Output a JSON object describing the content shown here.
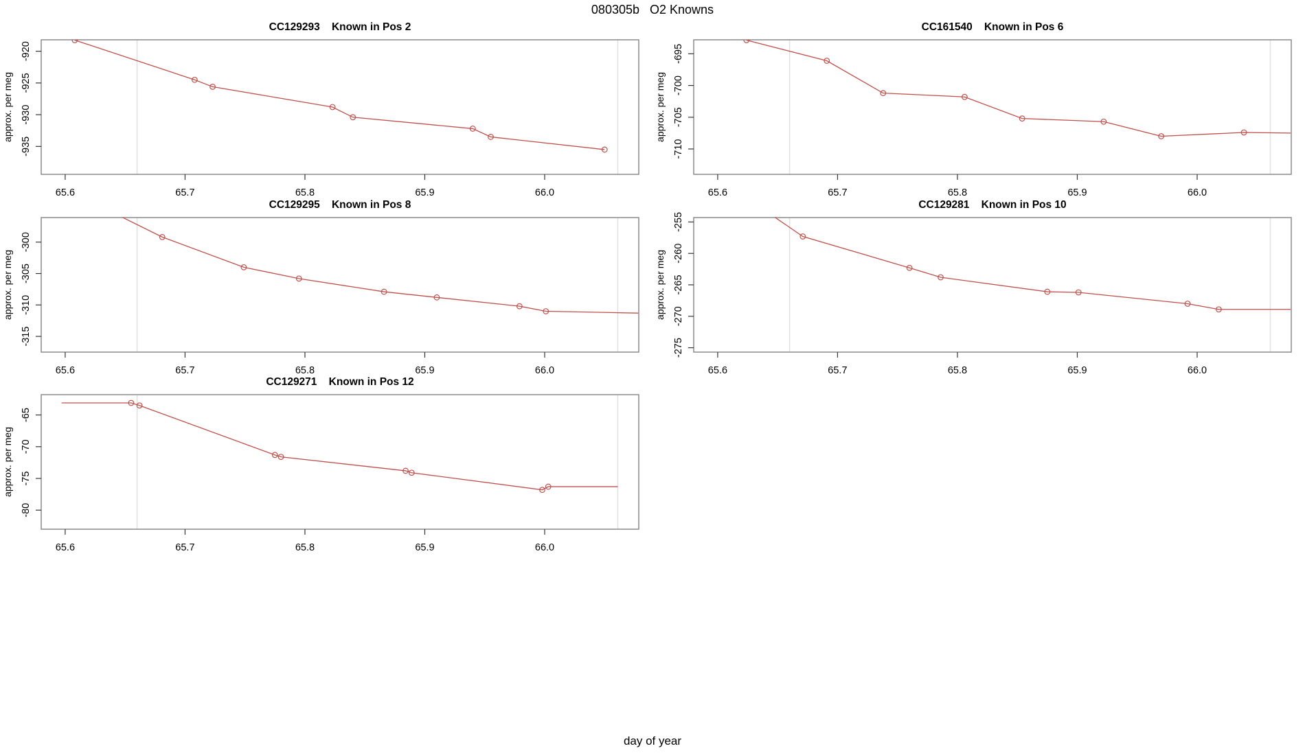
{
  "figure": {
    "title": "080305b   O2 Knowns",
    "xlabel": "day of year",
    "background": "#ffffff"
  },
  "chart_config": {
    "xlim": [
      65.58,
      66.0785
    ],
    "xticks": [
      65.6,
      65.7,
      65.8,
      65.9,
      66.0
    ],
    "xtick_labels": [
      "65.6",
      "65.7",
      "65.8",
      "65.9",
      "66.0"
    ],
    "vlines": [
      65.66,
      66.061
    ],
    "line_color": "#bf4f4a",
    "marker": "open-circle",
    "marker_radius": 3.8,
    "vline_color": "#e2e2e2",
    "box_color": "#8a8a8a",
    "tick_color": "#333333",
    "text_color": "#000000",
    "grid": false,
    "legend": "none"
  },
  "chart_data": [
    {
      "type": "line",
      "id": "CC129293",
      "title": "CC129293    Known in Pos 2",
      "row": 0,
      "col": 0,
      "ylabel": "approx. per meg",
      "ylim": [
        -939.4,
        -918.2
      ],
      "yticks": [
        -935,
        -930,
        -925,
        -920
      ],
      "ytick_labels": [
        "-935",
        "-930",
        "-925",
        "-920"
      ],
      "line": [
        [
          65.608,
          -918.25
        ],
        [
          65.708,
          -924.5
        ],
        [
          65.723,
          -925.6
        ],
        [
          65.823,
          -928.8
        ],
        [
          65.84,
          -930.4
        ],
        [
          65.94,
          -932.2
        ],
        [
          65.955,
          -933.5
        ],
        [
          66.05,
          -935.5
        ]
      ],
      "points": [
        [
          65.608,
          -918.25
        ],
        [
          65.708,
          -924.5
        ],
        [
          65.723,
          -925.6
        ],
        [
          65.823,
          -928.8
        ],
        [
          65.84,
          -930.4
        ],
        [
          65.94,
          -932.2
        ],
        [
          65.955,
          -933.5
        ],
        [
          66.05,
          -935.5
        ]
      ]
    },
    {
      "type": "line",
      "id": "CC161540",
      "title": "CC161540    Known in Pos 6",
      "row": 0,
      "col": 1,
      "ylabel": "approx. per meg",
      "ylim": [
        -714.0,
        -692.8
      ],
      "yticks": [
        -710,
        -705,
        -700,
        -695
      ],
      "ytick_labels": [
        "-710",
        "-705",
        "-700",
        "-695"
      ],
      "line": [
        [
          65.624,
          -692.85
        ],
        [
          65.691,
          -696.1
        ],
        [
          65.738,
          -701.2
        ],
        [
          65.806,
          -701.8
        ],
        [
          65.854,
          -705.2
        ],
        [
          65.922,
          -705.7
        ],
        [
          65.97,
          -708.0
        ],
        [
          66.039,
          -707.4
        ],
        [
          66.078,
          -707.5
        ]
      ],
      "points": [
        [
          65.624,
          -692.85
        ],
        [
          65.691,
          -696.1
        ],
        [
          65.738,
          -701.2
        ],
        [
          65.806,
          -701.8
        ],
        [
          65.854,
          -705.2
        ],
        [
          65.922,
          -705.7
        ],
        [
          65.97,
          -708.0
        ],
        [
          66.039,
          -707.4
        ]
      ]
    },
    {
      "type": "line",
      "id": "CC129295",
      "title": "CC129295    Known in Pos 8",
      "row": 1,
      "col": 0,
      "ylabel": "approx. per meg",
      "ylim": [
        -317.5,
        -296.1
      ],
      "yticks": [
        -315,
        -310,
        -305,
        -300
      ],
      "ytick_labels": [
        "-315",
        "-310",
        "-305",
        "-300"
      ],
      "line": [
        [
          65.645,
          -295.8
        ],
        [
          65.681,
          -299.2
        ],
        [
          65.749,
          -304.0
        ],
        [
          65.795,
          -305.8
        ],
        [
          65.866,
          -307.9
        ],
        [
          65.91,
          -308.8
        ],
        [
          65.979,
          -310.2
        ],
        [
          66.001,
          -311.0
        ],
        [
          66.078,
          -311.3
        ]
      ],
      "points": [
        [
          65.681,
          -299.2
        ],
        [
          65.749,
          -304.0
        ],
        [
          65.795,
          -305.8
        ],
        [
          65.866,
          -307.9
        ],
        [
          65.91,
          -308.8
        ],
        [
          65.979,
          -310.2
        ],
        [
          66.001,
          -311.0
        ]
      ]
    },
    {
      "type": "line",
      "id": "CC129281",
      "title": "CC129281    Known in Pos 10",
      "row": 1,
      "col": 1,
      "ylabel": "approx. per meg",
      "ylim": [
        -275.7,
        -254.3
      ],
      "yticks": [
        -275,
        -270,
        -265,
        -260,
        -255
      ],
      "ytick_labels": [
        "-275",
        "-270",
        "-265",
        "-260",
        "-255"
      ],
      "line": [
        [
          65.645,
          -253.9
        ],
        [
          65.671,
          -257.3
        ],
        [
          65.76,
          -262.3
        ],
        [
          65.786,
          -263.8
        ],
        [
          65.875,
          -266.1
        ],
        [
          65.901,
          -266.2
        ],
        [
          65.992,
          -268.0
        ],
        [
          66.018,
          -268.9
        ],
        [
          66.078,
          -268.9
        ]
      ],
      "points": [
        [
          65.671,
          -257.3
        ],
        [
          65.76,
          -262.3
        ],
        [
          65.786,
          -263.8
        ],
        [
          65.875,
          -266.1
        ],
        [
          65.901,
          -266.2
        ],
        [
          65.992,
          -268.0
        ],
        [
          66.018,
          -268.9
        ]
      ]
    },
    {
      "type": "line",
      "id": "CC129271",
      "title": "CC129271    Known in Pos 12",
      "row": 2,
      "col": 0,
      "ylabel": "approx. per meg",
      "ylim": [
        -83.0,
        -61.8
      ],
      "yticks": [
        -80,
        -75,
        -70,
        -65
      ],
      "ytick_labels": [
        "-80",
        "-75",
        "-70",
        "-65"
      ],
      "line": [
        [
          65.597,
          -63.1
        ],
        [
          65.655,
          -63.1
        ],
        [
          65.662,
          -63.5
        ],
        [
          65.775,
          -71.3
        ],
        [
          65.78,
          -71.6
        ],
        [
          65.884,
          -73.8
        ],
        [
          65.889,
          -74.1
        ],
        [
          65.998,
          -76.8
        ],
        [
          66.003,
          -76.3
        ],
        [
          66.061,
          -76.3
        ]
      ],
      "points": [
        [
          65.655,
          -63.1
        ],
        [
          65.662,
          -63.5
        ],
        [
          65.775,
          -71.3
        ],
        [
          65.78,
          -71.6
        ],
        [
          65.884,
          -73.8
        ],
        [
          65.889,
          -74.1
        ],
        [
          65.998,
          -76.8
        ],
        [
          66.003,
          -76.3
        ]
      ]
    }
  ]
}
